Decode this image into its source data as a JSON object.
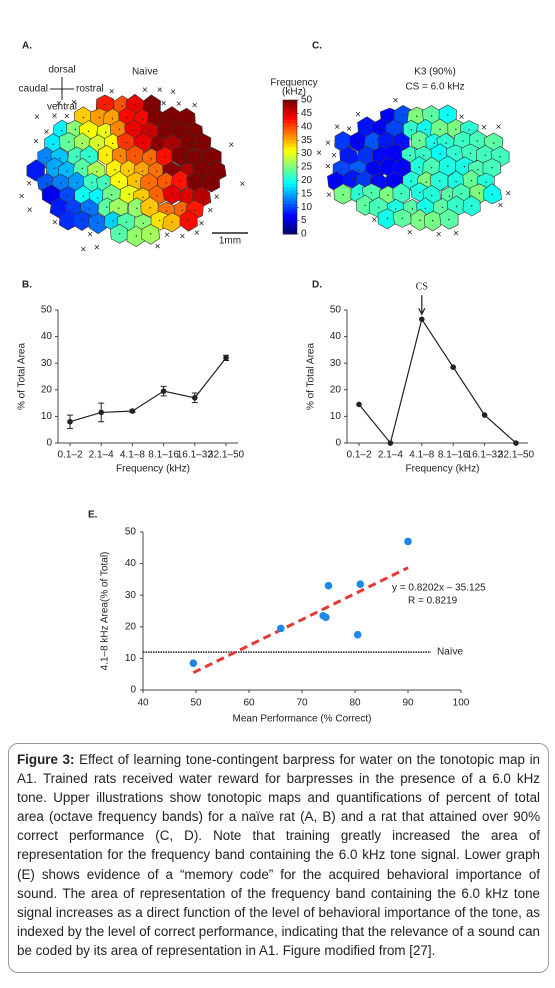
{
  "maps": [
    {
      "label": "A.",
      "title_lines": [
        "Naïve"
      ],
      "compass": {
        "up": "dorsal",
        "down": "ventral",
        "left": "caudal",
        "right": "rostral"
      },
      "scale_bar": "1mm"
    },
    {
      "label": "C.",
      "title_lines": [
        "K3 (90%)",
        "CS = 6.0 kHz"
      ]
    }
  ],
  "colorbar": {
    "title_lines": [
      "Frequency",
      "(kHz)"
    ],
    "lim": [
      0,
      50
    ],
    "ticks": [
      0,
      5,
      10,
      15,
      20,
      25,
      30,
      35,
      40,
      45,
      50
    ]
  },
  "chart_data": [
    {
      "type": "line",
      "label": "B.",
      "categories": [
        "0.1–2",
        "2.1–4",
        "4.1–8",
        "8.1–16",
        "16.1–32",
        "32.1–50"
      ],
      "values": [
        8,
        11.5,
        12,
        19.5,
        17,
        32
      ],
      "errors": [
        2.5,
        3.5,
        0.5,
        1.8,
        1.8,
        1
      ],
      "color": "#222222",
      "ylabel": "% of Total Area",
      "xlabel": "Frequency (kHz)",
      "ylim": [
        0,
        50
      ],
      "yticks": [
        0,
        10,
        20,
        30,
        40,
        50
      ]
    },
    {
      "type": "line",
      "label": "D.",
      "categories": [
        "0.1–2",
        "2.1–4",
        "4.1–8",
        "8.1–16",
        "16.1–32",
        "32.1–50"
      ],
      "values": [
        14.5,
        0,
        46.5,
        28.5,
        10.5,
        0
      ],
      "color": "#222222",
      "ylabel": "% of Total Area",
      "xlabel": "Frequency (kHz)",
      "ylim": [
        0,
        50
      ],
      "yticks": [
        0,
        10,
        20,
        30,
        40,
        50
      ],
      "annotation": {
        "text": "CS",
        "category": "4.1–8"
      }
    },
    {
      "type": "scatter",
      "label": "E.",
      "x": [
        49.5,
        66,
        74,
        74.5,
        75,
        80.5,
        81,
        90
      ],
      "y": [
        8.5,
        19.5,
        23.5,
        23,
        33,
        17.5,
        33.5,
        47
      ],
      "color": "#1e88e5",
      "xlabel": "Mean Performance (% Correct)",
      "ylabel": "4.1–8 kHz Area(% of Total)",
      "xlim": [
        40,
        100
      ],
      "xticks": [
        40,
        50,
        60,
        70,
        80,
        90,
        100
      ],
      "ylim": [
        0,
        50
      ],
      "yticks": [
        0,
        10,
        20,
        30,
        40,
        50
      ],
      "fit": {
        "slope": 0.8202,
        "intercept": -35.125,
        "color": "#e53935",
        "equation": "y = 0.8202x – 35.125",
        "r_label": "R = 0.8219"
      },
      "reference": {
        "value": 12,
        "label": "Naïve"
      }
    }
  ],
  "caption": {
    "label": "Figure 3:",
    "text": "Effect of learning tone-contingent barpress for water on the tonotopic map in A1. Trained rats received water reward for barpresses in the presence of a 6.0 kHz tone. Upper illustrations show tonotopic maps and quantifications of percent of total area (octave frequency bands) for a naïve rat (A, B) and a rat that attained over 90% correct performance (C, D). Note that training greatly increased the area of representation for the frequency band containing the 6.0 kHz tone signal. Lower graph (E) shows evidence of a “memory code” for the acquired behavioral importance of sound. The area of representation of the frequency band containing the 6.0 kHz tone signal increases as a direct function of the level of behavioral importance of the tone, as indexed by the level of correct performance, indicating that the relevance of a sound can be coded by its area of representation in A1. Figure modified from [27]."
  }
}
